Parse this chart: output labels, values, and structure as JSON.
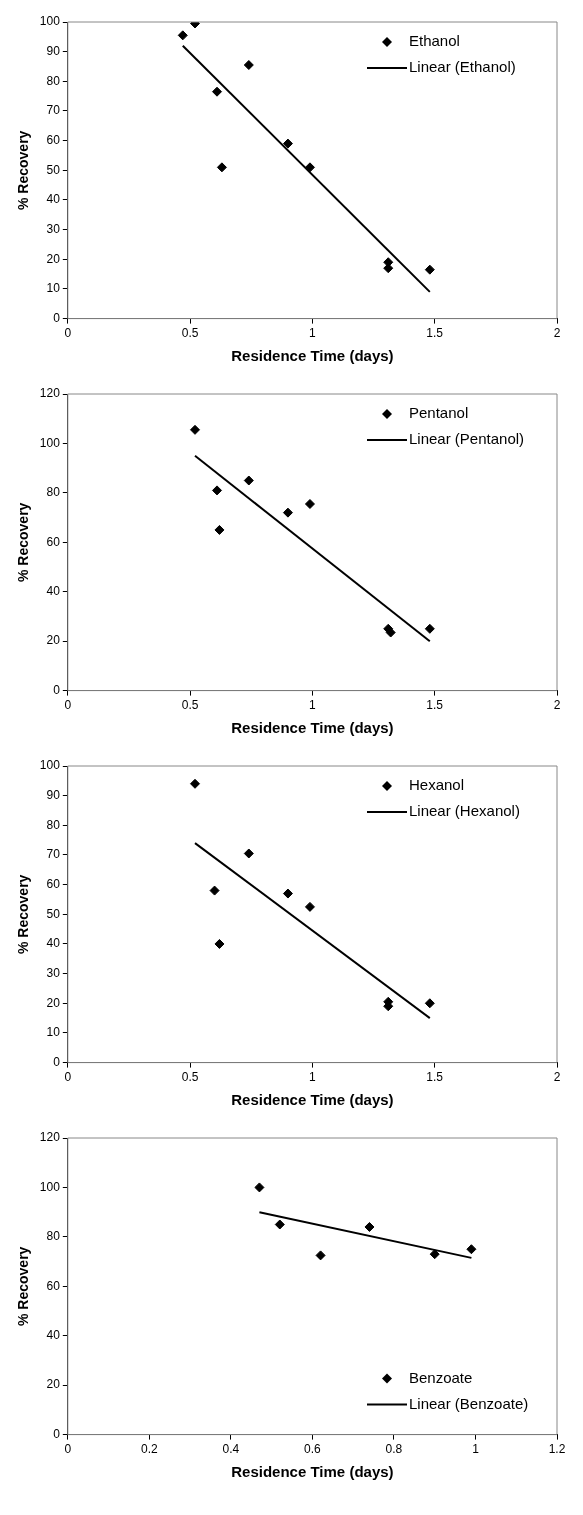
{
  "chart_data": [
    {
      "type": "scatter",
      "xlabel": "Residence Time (days)",
      "ylabel": "% Recovery",
      "xlim": [
        0,
        2
      ],
      "xticks": [
        0,
        0.5,
        1,
        1.5,
        2
      ],
      "ylim": [
        0,
        100
      ],
      "yticks": [
        0,
        10,
        20,
        30,
        40,
        50,
        60,
        70,
        80,
        90,
        100
      ],
      "grid": false,
      "legend": "top right",
      "series": [
        {
          "name": "Ethanol",
          "marker": "diamond",
          "color": "#000000",
          "x": [
            0.47,
            0.52,
            0.61,
            0.63,
            0.74,
            0.9,
            0.99,
            1.31,
            1.31,
            1.48
          ],
          "values": [
            95.5,
            99.5,
            76.5,
            51,
            85.5,
            59,
            51,
            19,
            17,
            16.5
          ]
        },
        {
          "name": "Linear (Ethanol)",
          "type": "line",
          "marker": "none",
          "line_style": "solid",
          "color": "#000000",
          "x": [
            0.47,
            1.48
          ],
          "values": [
            92,
            9
          ]
        }
      ]
    },
    {
      "type": "scatter",
      "xlabel": "Residence Time (days)",
      "ylabel": "% Recovery",
      "xlim": [
        0,
        2
      ],
      "xticks": [
        0,
        0.5,
        1,
        1.5,
        2
      ],
      "ylim": [
        0,
        120
      ],
      "yticks": [
        0,
        20,
        40,
        60,
        80,
        100,
        120
      ],
      "grid": false,
      "legend": "top right",
      "series": [
        {
          "name": "Pentanol",
          "marker": "diamond",
          "color": "#000000",
          "x": [
            0.52,
            0.61,
            0.62,
            0.74,
            0.9,
            0.99,
            1.31,
            1.32,
            1.48
          ],
          "values": [
            105.5,
            81,
            65,
            85,
            72,
            75.5,
            25,
            23.5,
            25
          ]
        },
        {
          "name": "Linear (Pentanol)",
          "type": "line",
          "marker": "none",
          "line_style": "solid",
          "color": "#000000",
          "x": [
            0.52,
            1.48
          ],
          "values": [
            95,
            20
          ]
        }
      ]
    },
    {
      "type": "scatter",
      "xlabel": "Residence Time (days)",
      "ylabel": "% Recovery",
      "xlim": [
        0,
        2
      ],
      "xticks": [
        0,
        0.5,
        1,
        1.5,
        2
      ],
      "ylim": [
        0,
        100
      ],
      "yticks": [
        0,
        10,
        20,
        30,
        40,
        50,
        60,
        70,
        80,
        90,
        100
      ],
      "grid": false,
      "legend": "top right",
      "series": [
        {
          "name": "Hexanol",
          "marker": "diamond",
          "color": "#000000",
          "x": [
            0.52,
            0.6,
            0.62,
            0.74,
            0.9,
            0.99,
            1.31,
            1.31,
            1.48
          ],
          "values": [
            94,
            58,
            40,
            70.5,
            57,
            52.5,
            20.5,
            19,
            20
          ]
        },
        {
          "name": "Linear (Hexanol)",
          "type": "line",
          "marker": "none",
          "line_style": "solid",
          "color": "#000000",
          "x": [
            0.52,
            1.48
          ],
          "values": [
            74,
            15
          ]
        }
      ]
    },
    {
      "type": "scatter",
      "xlabel": "Residence Time (days)",
      "ylabel": "% Recovery",
      "xlim": [
        0,
        1.2
      ],
      "xticks": [
        0,
        0.2,
        0.4,
        0.6,
        0.8,
        1,
        1.2
      ],
      "ylim": [
        0,
        120
      ],
      "yticks": [
        0,
        20,
        40,
        60,
        80,
        100,
        120
      ],
      "grid": false,
      "legend": "bottom right",
      "series": [
        {
          "name": "Benzoate",
          "marker": "diamond",
          "color": "#000000",
          "x": [
            0.47,
            0.52,
            0.62,
            0.74,
            0.9,
            0.99
          ],
          "values": [
            100,
            85,
            72.5,
            84,
            73,
            75
          ]
        },
        {
          "name": "Linear (Benzoate)",
          "type": "line",
          "marker": "none",
          "line_style": "solid",
          "color": "#000000",
          "x": [
            0.47,
            0.99
          ],
          "values": [
            90,
            71.5
          ]
        }
      ]
    }
  ]
}
